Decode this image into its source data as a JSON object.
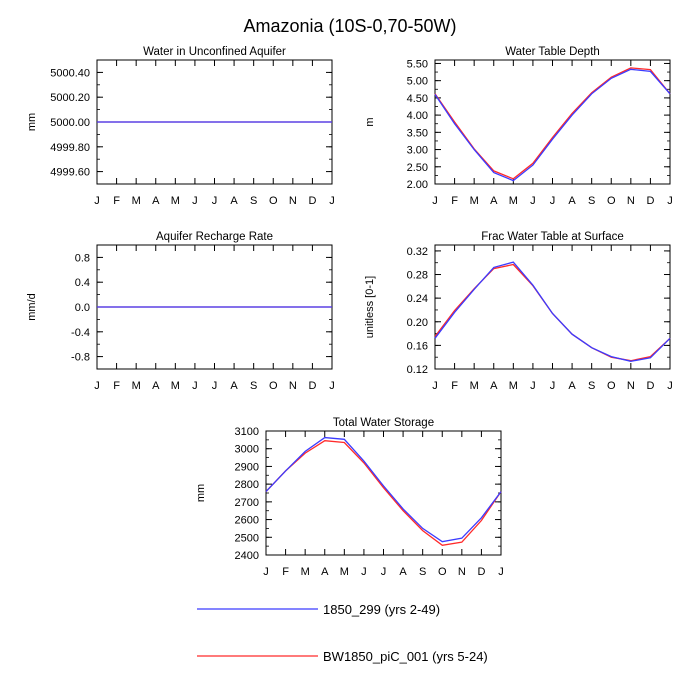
{
  "figure_title": "Amazonia (10S-0,70-50W)",
  "legend": {
    "entries": [
      {
        "label": "1850_299 (yrs 2-49)",
        "color": "#3b3bff"
      },
      {
        "label": "BW1850_piC_001 (yrs 5-24)",
        "color": "#ff2a2a"
      }
    ]
  },
  "chart_data": [
    {
      "type": "line",
      "title": "Water in Unconfined Aquifer",
      "ylabel": "mm",
      "ylim": [
        4999.5,
        5000.5
      ],
      "yticks": [
        4999.6,
        4999.8,
        5000.0,
        5000.2,
        5000.4
      ],
      "yticklabels": [
        "4999.60",
        "4999.80",
        "5000.00",
        "5000.20",
        "5000.40"
      ],
      "xticklabels": [
        "J",
        "F",
        "M",
        "A",
        "M",
        "J",
        "J",
        "A",
        "S",
        "O",
        "N",
        "D",
        "J"
      ],
      "series": [
        {
          "name": "1850_299 (yrs 2-49)",
          "color": "#3b3bff",
          "values": [
            5000,
            5000,
            5000,
            5000,
            5000,
            5000,
            5000,
            5000,
            5000,
            5000,
            5000,
            5000,
            5000
          ]
        },
        {
          "name": "BW1850_piC_001 (yrs 5-24)",
          "color": "#ff2a2a",
          "values": [
            5000,
            5000,
            5000,
            5000,
            5000,
            5000,
            5000,
            5000,
            5000,
            5000,
            5000,
            5000,
            5000
          ]
        }
      ]
    },
    {
      "type": "line",
      "title": "Water Table Depth",
      "ylabel": "m",
      "ylim": [
        2.0,
        5.6
      ],
      "yticks": [
        2.0,
        2.5,
        3.0,
        3.5,
        4.0,
        4.5,
        5.0,
        5.5
      ],
      "yticklabels": [
        "2.00",
        "2.50",
        "3.00",
        "3.50",
        "4.00",
        "4.50",
        "5.00",
        "5.50"
      ],
      "xticklabels": [
        "J",
        "F",
        "M",
        "A",
        "M",
        "J",
        "J",
        "A",
        "S",
        "O",
        "N",
        "D",
        "J"
      ],
      "series": [
        {
          "name": "1850_299 (yrs 2-49)",
          "color": "#3b3bff",
          "values": [
            4.6,
            3.75,
            3.0,
            2.33,
            2.1,
            2.55,
            3.3,
            4.0,
            4.62,
            5.07,
            5.33,
            5.27,
            4.62
          ]
        },
        {
          "name": "BW1850_piC_001 (yrs 5-24)",
          "color": "#ff2a2a",
          "values": [
            4.62,
            3.8,
            3.02,
            2.38,
            2.15,
            2.6,
            3.35,
            4.05,
            4.65,
            5.1,
            5.37,
            5.32,
            4.62
          ]
        }
      ]
    },
    {
      "type": "line",
      "title": "Aquifer Recharge Rate",
      "ylabel": "mm/d",
      "ylim": [
        -1.0,
        1.0
      ],
      "yticks": [
        -0.8,
        -0.4,
        0.0,
        0.4,
        0.8
      ],
      "yticklabels": [
        "-0.8",
        "-0.4",
        "0.0",
        "0.4",
        "0.8"
      ],
      "xticklabels": [
        "J",
        "F",
        "M",
        "A",
        "M",
        "J",
        "J",
        "A",
        "S",
        "O",
        "N",
        "D",
        "J"
      ],
      "series": [
        {
          "name": "1850_299 (yrs 2-49)",
          "color": "#3b3bff",
          "values": [
            0,
            0,
            0,
            0,
            0,
            0,
            0,
            0,
            0,
            0,
            0,
            0,
            0
          ]
        },
        {
          "name": "BW1850_piC_001 (yrs 5-24)",
          "color": "#ff2a2a",
          "values": [
            0,
            0,
            0,
            0,
            0,
            0,
            0,
            0,
            0,
            0,
            0,
            0,
            0
          ]
        }
      ]
    },
    {
      "type": "line",
      "title": "Frac Water Table at Surface",
      "ylabel": "unitless [0-1]",
      "ylim": [
        0.12,
        0.33
      ],
      "yticks": [
        0.12,
        0.16,
        0.2,
        0.24,
        0.28,
        0.32
      ],
      "yticklabels": [
        "0.12",
        "0.16",
        "0.20",
        "0.24",
        "0.28",
        "0.32"
      ],
      "xticklabels": [
        "J",
        "F",
        "M",
        "A",
        "M",
        "J",
        "J",
        "A",
        "S",
        "O",
        "N",
        "D",
        "J"
      ],
      "series": [
        {
          "name": "1850_299 (yrs 2-49)",
          "color": "#3b3bff",
          "values": [
            0.172,
            0.216,
            0.255,
            0.292,
            0.301,
            0.262,
            0.214,
            0.179,
            0.156,
            0.141,
            0.133,
            0.139,
            0.172
          ]
        },
        {
          "name": "BW1850_piC_001 (yrs 5-24)",
          "color": "#ff2a2a",
          "values": [
            0.175,
            0.219,
            0.256,
            0.29,
            0.297,
            0.261,
            0.214,
            0.179,
            0.156,
            0.14,
            0.134,
            0.141,
            0.172
          ]
        }
      ]
    },
    {
      "type": "line",
      "title": "Total Water Storage",
      "ylabel": "mm",
      "ylim": [
        2400,
        3100
      ],
      "yticks": [
        2400,
        2500,
        2600,
        2700,
        2800,
        2900,
        3000,
        3100
      ],
      "yticklabels": [
        "2400",
        "2500",
        "2600",
        "2700",
        "2800",
        "2900",
        "3000",
        "3100"
      ],
      "xticklabels": [
        "J",
        "F",
        "M",
        "A",
        "M",
        "J",
        "J",
        "A",
        "S",
        "O",
        "N",
        "D",
        "J"
      ],
      "series": [
        {
          "name": "1850_299 (yrs 2-49)",
          "color": "#3b3bff",
          "values": [
            2758,
            2875,
            2985,
            3063,
            3053,
            2930,
            2790,
            2660,
            2550,
            2475,
            2495,
            2610,
            2758
          ]
        },
        {
          "name": "BW1850_piC_001 (yrs 5-24)",
          "color": "#ff2a2a",
          "values": [
            2758,
            2875,
            2975,
            3045,
            3035,
            2920,
            2780,
            2650,
            2538,
            2455,
            2472,
            2595,
            2758
          ]
        }
      ]
    }
  ]
}
